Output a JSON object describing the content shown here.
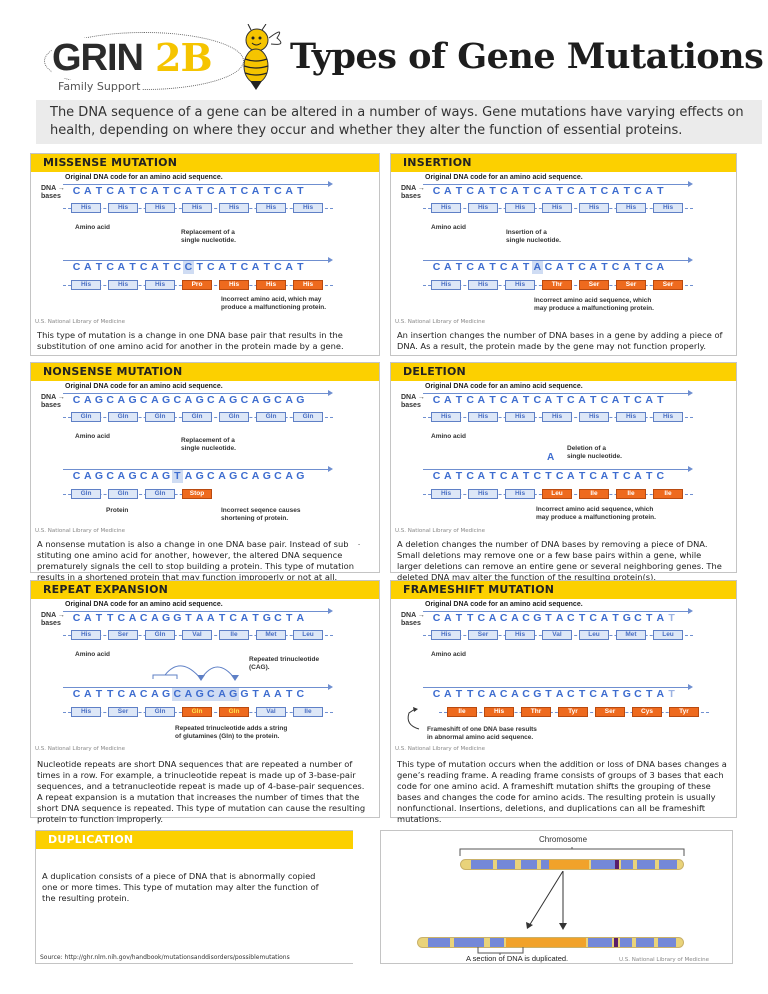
{
  "header": {
    "logo": {
      "main": "GRIN",
      "accent": "2B",
      "subtitle": "Family Support"
    },
    "title": "Types of Gene Mutations"
  },
  "intro": "The DNA sequence of a gene can be altered in a number of ways. Gene mutations have varying effects on health, depending on where they occur and whether they alter the function of essential proteins.",
  "common": {
    "diagram_title": "Original DNA code for an amino acid sequence.",
    "dna_label_1": "DNA →",
    "dna_label_2": "bases",
    "amino_label": "Amino acid",
    "credit": "U.S. National Library of Medicine"
  },
  "panels": {
    "missense": {
      "title": "MISSENSE MUTATION",
      "note_top_1": "Replacement of a",
      "note_top_2": "single nucleotide.",
      "note_bottom_1": "Incorrect amino acid, which may",
      "note_bottom_2": "produce a malfunctioning protein.",
      "original_bases": "CATCATCATCATCATCATCAT",
      "original_aas": [
        "His",
        "His",
        "His",
        "His",
        "His",
        "His",
        "His"
      ],
      "mutated_bases": "CATCATCATCCTCATCATCAT",
      "mutated_aas": [
        "His",
        "His",
        "His",
        "Pro",
        "His",
        "His",
        "His"
      ],
      "description": "This type of mutation is a change in one DNA base pair that results in the substitution of one amino acid for another in the protein made by a gene."
    },
    "insertion": {
      "title": "INSERTION",
      "note_top_1": "Insertion of a",
      "note_top_2": "single nucleotide.",
      "note_bottom_1": "Incorrect amino acid sequence, which",
      "note_bottom_2": "may produce a malfunctioning protein.",
      "original_bases": "CATCATCATCATCATCATCAT",
      "original_aas": [
        "His",
        "His",
        "His",
        "His",
        "His",
        "His",
        "His"
      ],
      "mutated_bases": "CATCATCATACATCATCATCA",
      "mutated_aas": [
        "His",
        "His",
        "His",
        "Thr",
        "Ser",
        "Ser",
        "Ser"
      ],
      "description": "An insertion changes the number of DNA bases in a gene by adding a piece of DNA. As a result, the protein made by the gene may not function properly."
    },
    "nonsense": {
      "title": "NONSENSE MUTATION",
      "note_top_1": "Replacement of a",
      "note_top_2": "single nucleotide.",
      "note_bottom_1": "Incorrect seqence causes",
      "note_bottom_2": "shortening of protein.",
      "protein_label": "Protein",
      "original_bases": "CAGCAGCAGCAGCAGCAGCAG",
      "original_aas": [
        "Gln",
        "Gln",
        "Gln",
        "Gln",
        "Gln",
        "Gln",
        "Gln"
      ],
      "mutated_bases": "CAGCAGCAGTAGCAGCAGCAG",
      "mutated_aas": [
        "Gln",
        "Gln",
        "Gln",
        "Stop"
      ],
      "description": "A nonsense mutation is also a change in one DNA base pair. Instead of sub stituting one amino acid for another, however, the altered DNA sequence prematurely signals the cell to stop building a protein. This type of mutation results in a shortened protein that may function improperly or not at all.",
      "stray_mark": "-"
    },
    "deletion": {
      "title": "DELETION",
      "note_top_0": "A",
      "note_top_1": "Deletion of a",
      "note_top_2": "single nucleotide.",
      "note_bottom_1": "Incorrect amino acid sequence, which",
      "note_bottom_2": "may produce a malfunctioning protein.",
      "original_bases": "CATCATCATCATCATCATCAT",
      "original_aas": [
        "His",
        "His",
        "His",
        "His",
        "His",
        "His",
        "His"
      ],
      "mutated_bases": "CATCATCATCTCATCATCATC",
      "mutated_aas": [
        "His",
        "His",
        "His",
        "Leu",
        "Ile",
        "Ile",
        "Ile"
      ],
      "description": "A deletion changes the number of DNA bases by removing a piece of DNA. Small deletions may remove one or a few base pairs within a gene, while larger deletions can remove an entire gene or several neighboring genes. The deleted DNA may alter the function of the resulting protein(s)."
    },
    "repeat": {
      "title": "REPEAT EXPANSION",
      "note_top_1": "Repeated trinucleotide",
      "note_top_2": "(CAG).",
      "note_bottom_1": "Repeated trinucleotide adds a string",
      "note_bottom_2": "of glutamines (Gln) to the  protein.",
      "original_bases": "CATTCACAGGTAATCATGCTA",
      "original_aas": [
        "His",
        "Ser",
        "Gln",
        "Val",
        "Ile",
        "Met",
        "Leu"
      ],
      "mutated_bases": "CATTCACAGCAGCAGGTAATC",
      "mutated_aas": [
        "His",
        "Ser",
        "Gln",
        "Gln",
        "Gln",
        "Val",
        "Ile"
      ],
      "description": "Nucleotide repeats are short DNA sequences that are repeated a number of times in a row. For example, a trinucleotide repeat is made up of 3-base-pair sequences, and a tetranucleotide repeat is made up of 4-base-pair sequences. A repeat expansion is a mutation that increases the number of times that the short DNA sequence is repeated. This type of mutation can cause the resulting protein to function improperly."
    },
    "frameshift": {
      "title": "FRAMESHIFT MUTATION",
      "note_bottom_1": "Frameshift of one DNA base results",
      "note_bottom_2": "in abnormal amino acid sequence.",
      "original_bases": "CATTCACACGTACTCATGCTAT",
      "original_aas": [
        "His",
        "Ser",
        "His",
        "Val",
        "Leu",
        "Met",
        "Leu"
      ],
      "mutated_bases": "CATTCACACGTACTCATGCTAT",
      "mutated_aas": [
        "Ile",
        "His",
        "Thr",
        "Tyr",
        "Ser",
        "Cys",
        "Tyr"
      ],
      "description": "This type of mutation occurs when the addition or loss of DNA bases changes a gene’s reading frame. A reading frame consists of groups of 3 bases that each code for one amino acid. A frameshift mutation shifts the grouping of these bases and changes the code for amino acids. The resulting protein is usually nonfunctional. Insertions, deletions, and duplications can all be frameshift mutations."
    },
    "duplication": {
      "title": "DUPLICATION",
      "description": "A duplication consists of a piece of DNA that is abnormally copied one or more times. This type of mutation may alter the function of the resulting protein.",
      "source": "Source: http://ghr.nlm.nih.gov/handbook/mutationsanddisorders/possiblemutations",
      "chromosome_label": "Chromosome",
      "duplicated_label": "A section of DNA is duplicated."
    }
  },
  "colors": {
    "header_yellow": "#fcd000",
    "dna_blue": "#3d6ccf",
    "mutation_orange": "#ee6a1e",
    "intro_bg": "#ebebeb"
  }
}
